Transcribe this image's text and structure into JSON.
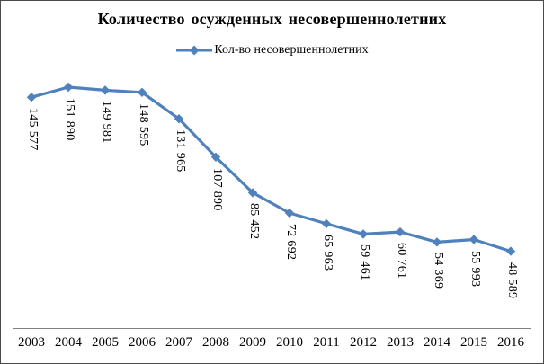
{
  "frame": {
    "background": "#ffffff",
    "border_color": "#4a4a4a"
  },
  "chart_data": {
    "type": "line",
    "title": "Количество осужденных несовершеннолетних",
    "legend": [
      {
        "label": "Кол-во несовершеннолетних",
        "color": "#4F81BD",
        "marker": "diamond"
      }
    ],
    "legend_position": "top",
    "x": [
      2003,
      2004,
      2005,
      2006,
      2007,
      2008,
      2009,
      2010,
      2011,
      2012,
      2013,
      2014,
      2015,
      2016
    ],
    "series": [
      {
        "name": "Кол-во несовершеннолетних",
        "values": [
          145577,
          151890,
          149981,
          148595,
          131965,
          107890,
          85452,
          72692,
          65963,
          59461,
          60761,
          54369,
          55993,
          48589
        ]
      }
    ],
    "point_labels": [
      "145 577",
      "151 890",
      "149 981",
      "148 595",
      "131 965",
      "107 890",
      "85 452",
      "72 692",
      "65 963",
      "59 461",
      "60 761",
      "54 369",
      "55 993",
      "48 589"
    ],
    "point_label_rotation_deg": 90,
    "xlabel": "",
    "ylabel": "",
    "ylim": [
      0,
      160000
    ],
    "grid": false,
    "y_axis_visible": false,
    "colors": {
      "line": "#4F81BD",
      "axis_line": "#808080",
      "text": "#000000"
    }
  }
}
